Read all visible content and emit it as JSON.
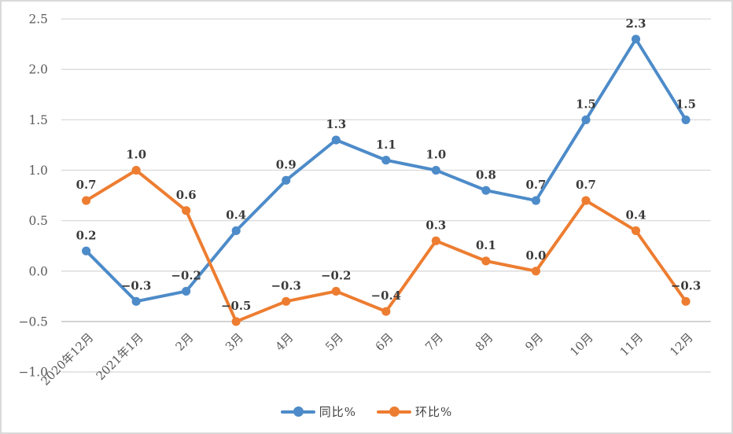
{
  "chart": {
    "background": "#FFFFFF",
    "frame_border_color": "#D9D9D9",
    "gridline_color": "#D9D9D9",
    "axis_line_color": "#BFBFBF",
    "tick_label_color": "#595959",
    "data_label_color": "#3A3A3A"
  },
  "chart_data": {
    "type": "line",
    "title": "",
    "xlabel": "",
    "ylabel": "",
    "categories": [
      "2020年12月",
      "2021年1月",
      "2月",
      "3月",
      "4月",
      "5月",
      "6月",
      "7月",
      "8月",
      "9月",
      "10月",
      "11月",
      "12月"
    ],
    "series": [
      {
        "name": "同比%",
        "color": "#4D8BC9",
        "values": [
          0.2,
          -0.3,
          -0.2,
          0.4,
          0.9,
          1.3,
          1.1,
          1.0,
          0.8,
          0.7,
          1.5,
          2.3,
          1.5
        ]
      },
      {
        "name": "环比%",
        "color": "#ED7D31",
        "values": [
          0.7,
          1.0,
          0.6,
          -0.5,
          -0.3,
          -0.2,
          -0.4,
          0.3,
          0.1,
          0.0,
          0.7,
          0.4,
          -0.3
        ]
      }
    ],
    "ylim": [
      -1.0,
      2.5
    ],
    "yticks": [
      2.5,
      2.0,
      1.5,
      1.0,
      0.5,
      0.0,
      -0.5,
      -1.0
    ],
    "ytick_labels": [
      "2.5",
      "2.0",
      "1.5",
      "1.0",
      "0.5",
      "0.0",
      "-0.5",
      "-1.0"
    ],
    "grid": true,
    "data_labels": true,
    "legend_position": "bottom"
  }
}
